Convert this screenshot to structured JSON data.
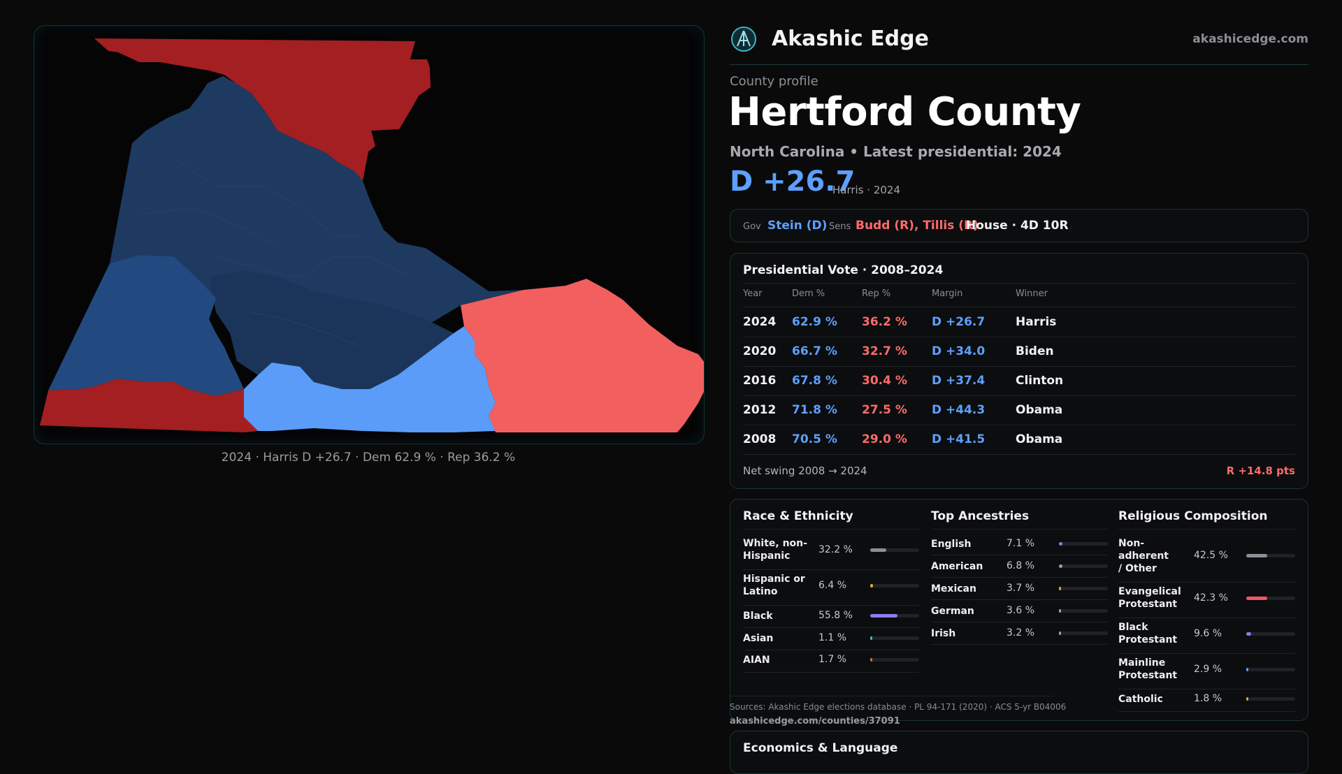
{
  "brand": {
    "name": "Akashic Edge",
    "site": "akashicedge.com"
  },
  "map": {
    "caption": "2024 · Harris D +26.7 · Dem 62.9 % · Rep 36.2 %",
    "colors": {
      "dark_red": "#a31f22",
      "light_red": "#f15f5f",
      "dark_blue": "#1e3a61",
      "mid_blue": "#224a80",
      "light_blue": "#5a9cf8"
    }
  },
  "header": {
    "eyebrow": "County profile",
    "title": "Hertford County",
    "subtitle": "North Carolina • Latest presidential: 2024",
    "margin": "D +26.7",
    "margin_note": "Harris · 2024"
  },
  "officials": {
    "gov_label": "Gov",
    "gov": "Stein (D)",
    "sens_label": "Sens",
    "sens": "Budd (R), Tillis (R)",
    "house": "House · 4D 10R"
  },
  "presidential": {
    "title": "Presidential Vote · 2008–2024",
    "columns": [
      "Year",
      "Dem %",
      "Rep %",
      "Margin",
      "Winner"
    ],
    "rows": [
      {
        "year": "2024",
        "dem": "62.9 %",
        "rep": "36.2 %",
        "margin": "D +26.7",
        "winner": "Harris"
      },
      {
        "year": "2020",
        "dem": "66.7 %",
        "rep": "32.7 %",
        "margin": "D +34.0",
        "winner": "Biden"
      },
      {
        "year": "2016",
        "dem": "67.8 %",
        "rep": "30.4 %",
        "margin": "D +37.4",
        "winner": "Clinton"
      },
      {
        "year": "2012",
        "dem": "71.8 %",
        "rep": "27.5 %",
        "margin": "D +44.3",
        "winner": "Obama"
      },
      {
        "year": "2008",
        "dem": "70.5 %",
        "rep": "29.0 %",
        "margin": "D +41.5",
        "winner": "Obama"
      }
    ],
    "swing_label": "Net swing 2008 → 2024",
    "swing_value": "R +14.8 pts"
  },
  "race": {
    "title": "Race & Ethnicity",
    "items": [
      {
        "label": "White, non-Hispanic",
        "value": "32.2 %",
        "pct": 32.2,
        "color": "#8a8f99"
      },
      {
        "label": "Hispanic or Latino",
        "value": "6.4 %",
        "pct": 6.4,
        "color": "#e0a43a"
      },
      {
        "label": "Black",
        "value": "55.8 %",
        "pct": 55.8,
        "color": "#8b7cf0"
      },
      {
        "label": "Asian",
        "value": "1.1 %",
        "pct": 1.1,
        "color": "#4bb7c4"
      },
      {
        "label": "AIAN",
        "value": "1.7 %",
        "pct": 1.7,
        "color": "#d36b4e"
      }
    ]
  },
  "ancestry": {
    "title": "Top Ancestries",
    "items": [
      {
        "label": "English",
        "value": "7.1 %",
        "pct": 7.1,
        "color": "#8b7cf0"
      },
      {
        "label": "American",
        "value": "6.8 %",
        "pct": 6.8,
        "color": "#9aa0aa"
      },
      {
        "label": "Mexican",
        "value": "3.7 %",
        "pct": 3.7,
        "color": "#e0a43a"
      },
      {
        "label": "German",
        "value": "3.6 %",
        "pct": 3.6,
        "color": "#9aa0aa"
      },
      {
        "label": "Irish",
        "value": "3.2 %",
        "pct": 3.2,
        "color": "#9aa0aa"
      }
    ]
  },
  "religion": {
    "title": "Religious Composition",
    "items": [
      {
        "label": "Non-adherent / Other",
        "value": "42.5 %",
        "pct": 42.5,
        "color": "#8a8f99"
      },
      {
        "label": "Evangelical Protestant",
        "value": "42.3 %",
        "pct": 42.3,
        "color": "#f0566a"
      },
      {
        "label": "Black Protestant",
        "value": "9.6 %",
        "pct": 9.6,
        "color": "#8b7cf0"
      },
      {
        "label": "Mainline Protestant",
        "value": "2.9 %",
        "pct": 2.9,
        "color": "#5d9cf8"
      },
      {
        "label": "Catholic",
        "value": "1.8 %",
        "pct": 1.8,
        "color": "#e0a43a"
      }
    ]
  },
  "sources": {
    "text": "Sources: Akashic Edge elections database · PL 94-171 (2020) · ACS 5-yr B04006",
    "url": "akashicedge.com/counties/37091"
  },
  "economics": {
    "title": "Economics & Language"
  }
}
